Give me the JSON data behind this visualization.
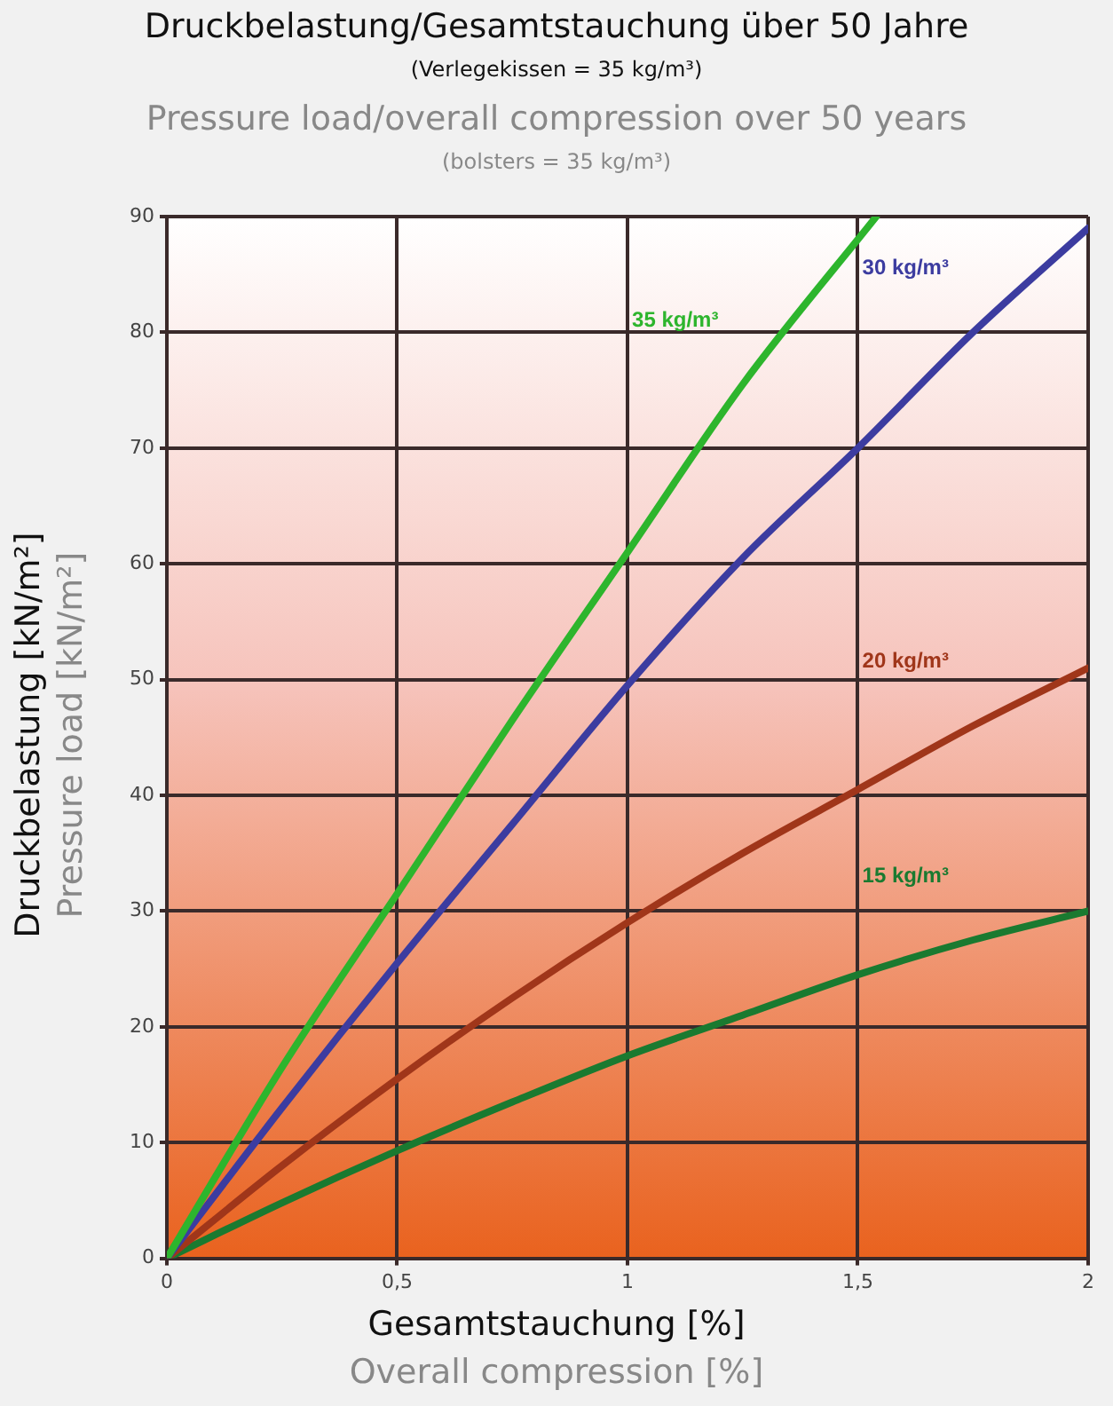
{
  "chart_data": {
    "type": "line",
    "title": "Druckbelastung/Gesamtstauchung über 50 Jahre",
    "subtitle": "(Verlegekissen = 35 kg/m³)",
    "xlabel": "Gesamtstauchung [%]",
    "ylabel": "Druckbelastung [kN/m²]",
    "annotations": [
      "Pressure load/overall compression over 50 years",
      "(bolsters = 35 kg/m³)",
      "Pressure load [kN/m²]",
      "Overall compression [%]"
    ],
    "xlim": [
      0,
      2
    ],
    "ylim": [
      0,
      90
    ],
    "xticks": [
      0,
      {
        "value": 0.5,
        "label": "0,5"
      },
      1,
      {
        "value": 1.5,
        "label": "1,5"
      },
      2
    ],
    "yticks": [
      0,
      10,
      20,
      30,
      40,
      50,
      60,
      70,
      80,
      90
    ],
    "grid": true,
    "legend": false,
    "marker": "none",
    "line_style": "solid",
    "series": [
      {
        "name": "35 kg/m³",
        "color": "#2db52d",
        "x": [
          0,
          0.25,
          0.5,
          0.75,
          1,
          1.25,
          1.54
        ],
        "values": [
          0,
          16.5,
          31.5,
          46.5,
          61,
          75.5,
          90
        ]
      },
      {
        "name": "30 kg/m³",
        "color": "#3c3ca0",
        "x": [
          0,
          0.25,
          0.5,
          0.75,
          1,
          1.25,
          1.5,
          1.75,
          2
        ],
        "values": [
          0,
          13,
          25.5,
          37.5,
          49.5,
          60.5,
          70,
          80,
          89
        ]
      },
      {
        "name": "20 kg/m³",
        "color": "#a0361a",
        "x": [
          0,
          0.25,
          0.5,
          0.75,
          1,
          1.25,
          1.5,
          1.75,
          2
        ],
        "values": [
          0,
          8,
          15.5,
          22.5,
          29,
          35,
          40.5,
          46,
          51
        ]
      },
      {
        "name": "15 kg/m³",
        "color": "#1a7a30",
        "x": [
          0,
          0.25,
          0.5,
          0.75,
          1,
          1.25,
          1.5,
          1.75,
          2
        ],
        "values": [
          0,
          4.8,
          9.3,
          13.5,
          17.5,
          21,
          24.5,
          27.5,
          30
        ]
      }
    ]
  }
}
